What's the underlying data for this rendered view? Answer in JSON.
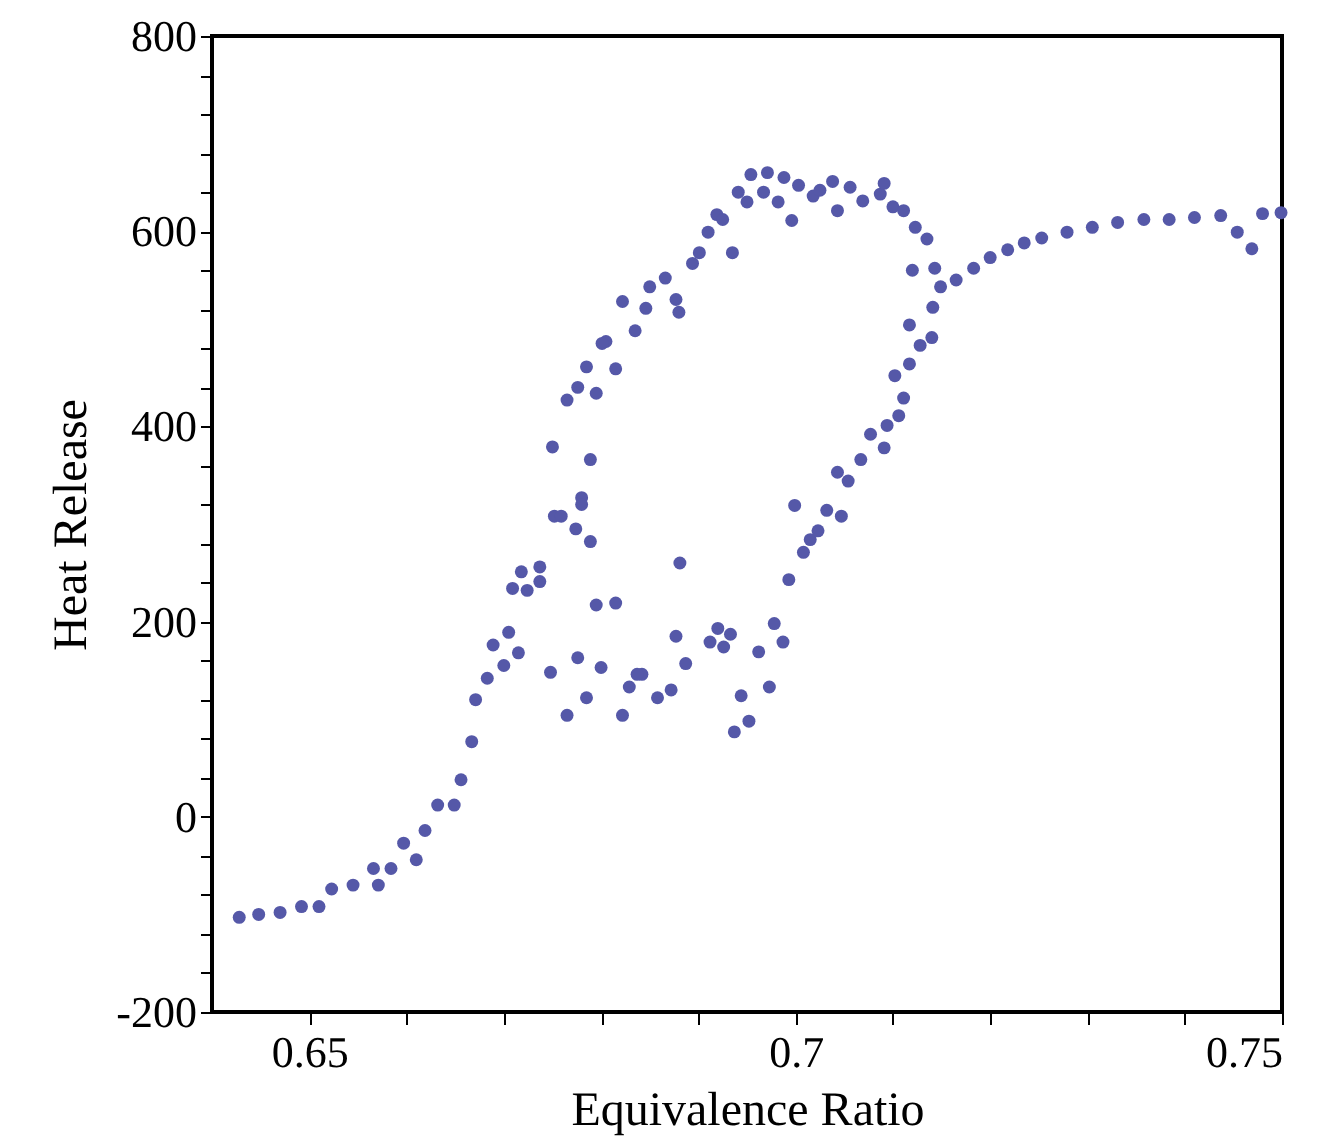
{
  "chart_data": {
    "type": "scatter",
    "xlabel": "Equivalence Ratio",
    "ylabel": "Heat Release",
    "marker": "circle",
    "grid": false,
    "xlim": [
      0.64,
      0.75
    ],
    "xticks": [
      0.65,
      {
        "value": 0.66,
        "label": null
      },
      {
        "value": 0.67,
        "label": null
      },
      {
        "value": 0.68,
        "label": null
      },
      {
        "value": 0.69,
        "label": null
      },
      0.7,
      {
        "value": 0.71,
        "label": null
      },
      {
        "value": 0.72,
        "label": null
      },
      {
        "value": 0.73,
        "label": null
      },
      {
        "value": 0.74,
        "label": null
      },
      0.75
    ],
    "ylim": [
      -200,
      800
    ],
    "yticks": [
      -200,
      {
        "value": -160,
        "label": null
      },
      {
        "value": -120,
        "label": null
      },
      {
        "value": -80,
        "label": null
      },
      {
        "value": -40,
        "label": null
      },
      0,
      {
        "value": 40,
        "label": null
      },
      {
        "value": 80,
        "label": null
      },
      {
        "value": 120,
        "label": null
      },
      {
        "value": 160,
        "label": null
      },
      200,
      {
        "value": 240,
        "label": null
      },
      {
        "value": 280,
        "label": null
      },
      {
        "value": 320,
        "label": null
      },
      {
        "value": 360,
        "label": null
      },
      400,
      {
        "value": 440,
        "label": null
      },
      {
        "value": 480,
        "label": null
      },
      {
        "value": 520,
        "label": null
      },
      {
        "value": 560,
        "label": null
      },
      600,
      {
        "value": 640,
        "label": null
      },
      {
        "value": 680,
        "label": null
      },
      {
        "value": 720,
        "label": null
      },
      {
        "value": 760,
        "label": null
      },
      800
    ],
    "series": [
      {
        "color": "#5558a8",
        "x": [
          0.6428,
          0.6448,
          0.647,
          0.6492,
          0.651,
          0.6523,
          0.6545,
          0.6566,
          0.6571,
          0.6584,
          0.6597,
          0.661,
          0.6619,
          0.6632,
          0.6649,
          0.6656,
          0.6667,
          0.6671,
          0.6683,
          0.6689,
          0.67,
          0.6705,
          0.6715,
          0.6709,
          0.6724,
          0.6718,
          0.6737,
          0.6737,
          0.675,
          0.6752,
          0.6759,
          0.6748,
          0.6765,
          0.6776,
          0.6774,
          0.678,
          0.678,
          0.6789,
          0.6789,
          0.6765,
          0.6776,
          0.6785,
          0.6795,
          0.6795,
          0.6785,
          0.68,
          0.6805,
          0.6801,
          0.6815,
          0.6815,
          0.6822,
          0.6822,
          0.6829,
          0.6835,
          0.6842,
          0.6837,
          0.6846,
          0.685,
          0.6858,
          0.6866,
          0.6872,
          0.6877,
          0.6877,
          0.688,
          0.6881,
          0.6887,
          0.6894,
          0.6901,
          0.691,
          0.6912,
          0.6919,
          0.6925,
          0.692,
          0.6926,
          0.6933,
          0.6935,
          0.6937,
          0.6941,
          0.6944,
          0.6952,
          0.695,
          0.6954,
          0.6962,
          0.6967,
          0.6971,
          0.6973,
          0.6978,
          0.6982,
          0.6987,
          0.6988,
          0.6993,
          0.6996,
          0.6999,
          0.7003,
          0.7008,
          0.7015,
          0.7018,
          0.7023,
          0.7025,
          0.7032,
          0.7038,
          0.7043,
          0.7043,
          0.7047,
          0.7056,
          0.7054,
          0.7067,
          0.7069,
          0.7077,
          0.7087,
          0.7091,
          0.7094,
          0.7091,
          0.71,
          0.7102,
          0.7106,
          0.7111,
          0.7111,
          0.7117,
          0.712,
          0.7117,
          0.7123,
          0.7128,
          0.7135,
          0.714,
          0.7141,
          0.7143,
          0.7149,
          0.7165,
          0.7183,
          0.72,
          0.7218,
          0.7235,
          0.7253,
          0.7279,
          0.7305,
          0.7331,
          0.7358,
          0.7384,
          0.741,
          0.7437,
          0.7454,
          0.7469,
          0.748,
          0.7499
        ],
        "values": [
          -103,
          -100,
          -98,
          -92,
          -92,
          -74,
          -70,
          -53,
          -70,
          -53,
          -27,
          -44,
          -14,
          12,
          12,
          38,
          77,
          120,
          142,
          176,
          155,
          189,
          168,
          234,
          232,
          251,
          241,
          256,
          379,
          308,
          308,
          148,
          104,
          163,
          295,
          327,
          320,
          366,
          282,
          427,
          440,
          461,
          434,
          217,
          122,
          153,
          487,
          485,
          459,
          219,
          104,
          528,
          133,
          498,
          146,
          146,
          521,
          543,
          122,
          552,
          130,
          185,
          530,
          517,
          260,
          157,
          567,
          578,
          599,
          179,
          617,
          612,
          193,
          174,
          187,
          578,
          87,
          640,
          124,
          98,
          630,
          658,
          169,
          640,
          660,
          133,
          198,
          630,
          179,
          655,
          243,
          611,
          319,
          647,
          271,
          284,
          636,
          293,
          642,
          314,
          651,
          621,
          353,
          308,
          645,
          344,
          366,
          631,
          392,
          638,
          378,
          401,
          649,
          625,
          452,
          411,
          429,
          621,
          464,
          560,
          504,
          604,
          483,
          592,
          491,
          522,
          562,
          543,
          550,
          562,
          573,
          581,
          588,
          593,
          599,
          604,
          609,
          612,
          612,
          614,
          616,
          599,
          582,
          618,
          619
        ]
      }
    ]
  }
}
